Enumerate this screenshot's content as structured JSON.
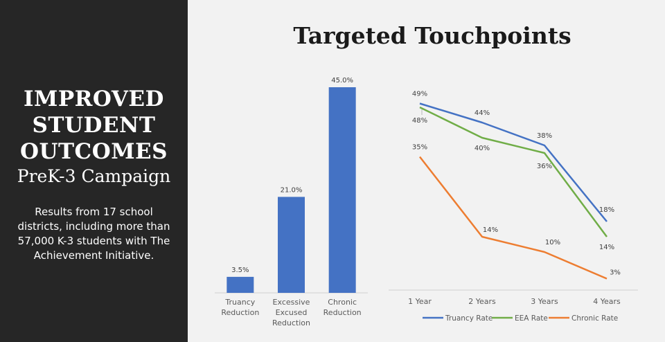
{
  "sidebar": {
    "headline": [
      "IMPROVED",
      "STUDENT",
      "OUTCOMES"
    ],
    "subhead": "PreK-3 Campaign",
    "blurb": "Results from 17 school districts, including more than 57,000 K-3 students with The Achievement Initiative."
  },
  "title": "Targeted Touchpoints",
  "colors": {
    "bar": "#4472c4",
    "truancy": "#4472c4",
    "eea": "#70ad47",
    "chronic": "#ed7d31"
  },
  "chart_data": [
    {
      "type": "bar",
      "categories": [
        [
          "Truancy",
          "Reduction"
        ],
        [
          "Excessive",
          "Excused",
          "Reduction"
        ],
        [
          "Chronic",
          "Reduction"
        ]
      ],
      "values": [
        3.5,
        21.0,
        45.0
      ],
      "data_labels": [
        "3.5%",
        "21.0%",
        "45.0%"
      ],
      "ylim": [
        0,
        45
      ],
      "title": "",
      "xlabel": "",
      "ylabel": ""
    },
    {
      "type": "line",
      "categories": [
        "1 Year",
        "2 Years",
        "3 Years",
        "4 Years"
      ],
      "ylim": [
        0,
        55
      ],
      "series": [
        {
          "name": "Truancy Rate",
          "key": "truancy",
          "values": [
            49,
            44,
            38,
            18
          ],
          "labels": [
            "49%",
            "44%",
            "38%",
            "18%"
          ]
        },
        {
          "name": "EEA Rate",
          "key": "eea",
          "values": [
            48,
            40,
            36,
            14
          ],
          "labels": [
            "48%",
            "40%",
            "36%",
            "14%"
          ]
        },
        {
          "name": "Chronic Rate",
          "key": "chronic",
          "values": [
            35,
            14,
            10,
            3
          ],
          "labels": [
            "35%",
            "14%",
            "10%",
            "3%"
          ]
        }
      ],
      "legend": "bottom"
    }
  ]
}
